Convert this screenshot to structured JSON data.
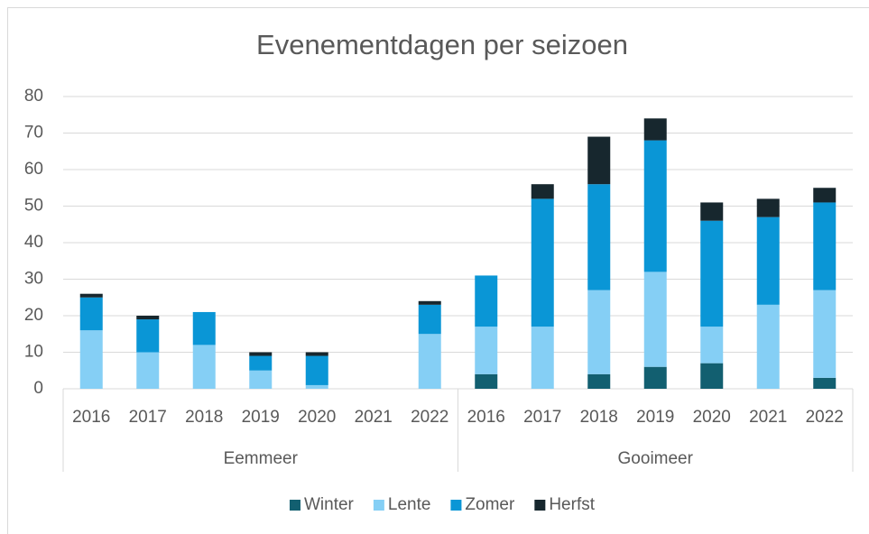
{
  "chart_data": {
    "type": "bar",
    "stacked": true,
    "title": "Evenementdagen per seizoen",
    "categories": [
      "2016",
      "2017",
      "2018",
      "2019",
      "2020",
      "2021",
      "2022",
      "2016",
      "2017",
      "2018",
      "2019",
      "2020",
      "2021",
      "2022"
    ],
    "category_groups": [
      {
        "name": "Eemmeer",
        "size": 7
      },
      {
        "name": "Gooimeer",
        "size": 7
      }
    ],
    "series": [
      {
        "name": "Winter",
        "color": "#125f70",
        "values": [
          0,
          0,
          0,
          0,
          0,
          0,
          0,
          4,
          0,
          4,
          6,
          7,
          0,
          3
        ]
      },
      {
        "name": "Lente",
        "color": "#85cff5",
        "values": [
          16,
          10,
          12,
          5,
          1,
          0,
          15,
          13,
          17,
          23,
          26,
          10,
          23,
          24
        ]
      },
      {
        "name": "Zomer",
        "color": "#0a96d6",
        "values": [
          9,
          9,
          9,
          4,
          8,
          0,
          8,
          14,
          35,
          29,
          36,
          29,
          24,
          24
        ]
      },
      {
        "name": "Herfst",
        "color": "#17272e",
        "values": [
          1,
          1,
          0,
          1,
          1,
          0,
          1,
          0,
          4,
          13,
          6,
          5,
          5,
          4
        ]
      }
    ],
    "ylim": [
      0,
      80
    ],
    "yticks": [
      0,
      10,
      20,
      30,
      40,
      50,
      60,
      70,
      80
    ],
    "grid": true,
    "legend": "bottom"
  }
}
